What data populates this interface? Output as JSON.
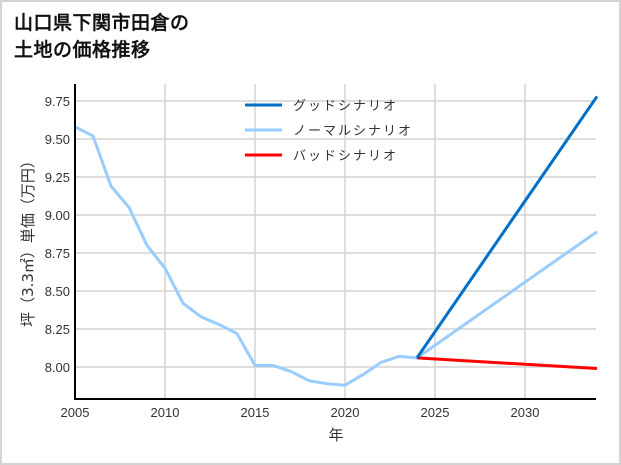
{
  "title_line1": "山口県下関市田倉の",
  "title_line2": "土地の価格推移",
  "chart_data": {
    "type": "line",
    "title": "山口県下関市田倉の土地の価格推移",
    "xlabel": "年",
    "ylabel": "坪（3.3㎡）単価（万円）",
    "xlim": [
      2005,
      2034
    ],
    "ylim": [
      7.85,
      9.8
    ],
    "grid": true,
    "legend_position": "upper center",
    "x_ticks": [
      "2005",
      "2010",
      "2015",
      "2020",
      "2025",
      "2030"
    ],
    "y_ticks": [
      "8.00",
      "8.25",
      "8.50",
      "8.75",
      "9.00",
      "9.25",
      "9.50",
      "9.75"
    ],
    "series": [
      {
        "name": "グッドシナリオ",
        "color": "#0070c8",
        "x": [
          2024,
          2034
        ],
        "values": [
          8.06,
          9.78
        ]
      },
      {
        "name": "ノーマルシナリオ",
        "color": "#99ccff",
        "x": [
          2005,
          2006,
          2007,
          2008,
          2009,
          2010,
          2011,
          2012,
          2013,
          2014,
          2015,
          2016,
          2017,
          2018,
          2019,
          2020,
          2021,
          2022,
          2023,
          2024,
          2034
        ],
        "values": [
          9.58,
          9.52,
          9.19,
          9.05,
          8.8,
          8.65,
          8.42,
          8.33,
          8.28,
          8.22,
          8.01,
          8.01,
          7.97,
          7.91,
          7.89,
          7.88,
          7.95,
          8.03,
          8.07,
          8.06,
          8.89
        ]
      },
      {
        "name": "バッドシナリオ",
        "color": "#ff0000",
        "x": [
          2024,
          2034
        ],
        "values": [
          8.06,
          7.99
        ]
      }
    ]
  }
}
